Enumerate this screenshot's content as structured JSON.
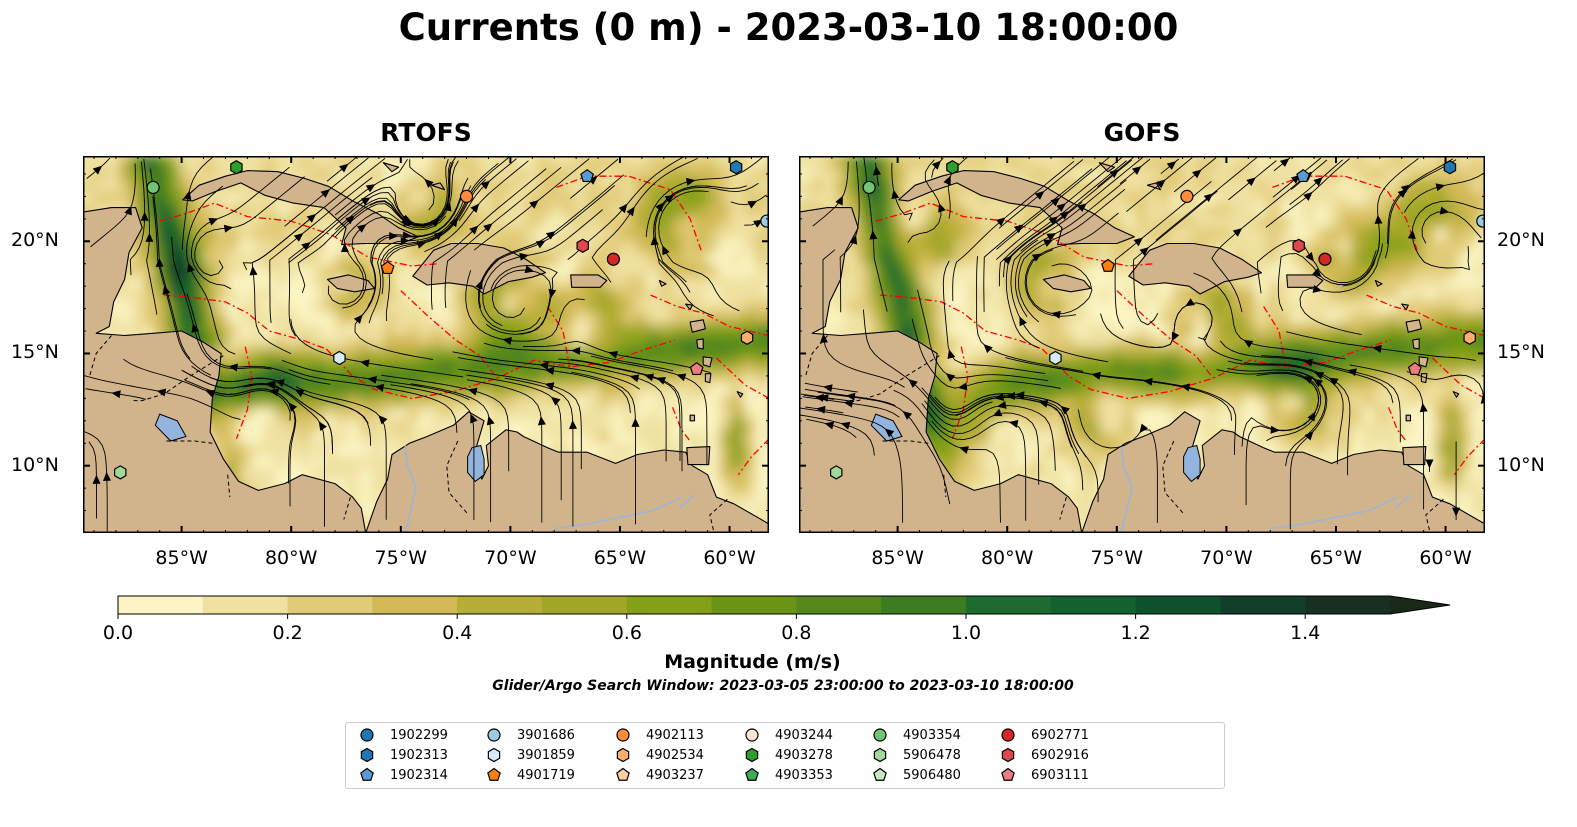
{
  "title": "Currents (0 m) - 2023-03-10 18:00:00",
  "panels": [
    {
      "title": "RTOFS"
    },
    {
      "title": "GOFS"
    }
  ],
  "lon_ticks": [
    "85°W",
    "80°W",
    "75°W",
    "70°W",
    "65°W",
    "60°W"
  ],
  "lat_ticks": [
    "20°N",
    "15°N",
    "10°N"
  ],
  "colorbar": {
    "label": "Magnitude (m/s)",
    "ticks": [
      "0.0",
      "0.2",
      "0.4",
      "0.6",
      "0.8",
      "1.0",
      "1.2",
      "1.4"
    ],
    "range": [
      0.0,
      1.5
    ],
    "extend": "max",
    "colors": [
      "#fbf5c3",
      "#efe1a0",
      "#e1cb77",
      "#d2b955",
      "#b6ae36",
      "#a0a626",
      "#84a016",
      "#6a9414",
      "#55891c",
      "#3e7c22",
      "#1f6b2f",
      "#13612e",
      "#0e522c",
      "#113f29",
      "#183022",
      "#1a2917"
    ]
  },
  "search_window": "Glider/Argo Search Window: 2023-03-05 23:00:00 to 2023-03-10 18:00:00",
  "colors": {
    "land": "#d2b48c",
    "lake": "#93b4dc",
    "eez": "#ff0000"
  },
  "legend": [
    {
      "id": "1902299",
      "marker": "circle",
      "color": "#1f77b4"
    },
    {
      "id": "1902313",
      "marker": "hexagon",
      "color": "#1f77b4"
    },
    {
      "id": "1902314",
      "marker": "pentagon",
      "color": "#5b9bd5"
    },
    {
      "id": "3901686",
      "marker": "circle",
      "color": "#9ecae1"
    },
    {
      "id": "3901859",
      "marker": "hexagon",
      "color": "#d6eaf8"
    },
    {
      "id": "4901719",
      "marker": "pentagon",
      "color": "#ff7f0e"
    },
    {
      "id": "4902113",
      "marker": "circle",
      "color": "#fd8d3c"
    },
    {
      "id": "4902534",
      "marker": "hexagon",
      "color": "#fdae6b"
    },
    {
      "id": "4903237",
      "marker": "pentagon",
      "color": "#fdd0a2"
    },
    {
      "id": "4903244",
      "marker": "circle",
      "color": "#fee6ce"
    },
    {
      "id": "4903278",
      "marker": "hexagon",
      "color": "#2ca02c"
    },
    {
      "id": "4903353",
      "marker": "pentagon",
      "color": "#41ab5d"
    },
    {
      "id": "4903354",
      "marker": "circle",
      "color": "#74c476"
    },
    {
      "id": "5906478",
      "marker": "hexagon",
      "color": "#a1d99b"
    },
    {
      "id": "5906480",
      "marker": "pentagon",
      "color": "#c7e9c0"
    },
    {
      "id": "6902771",
      "marker": "circle",
      "color": "#d62728"
    },
    {
      "id": "6902916",
      "marker": "hexagon",
      "color": "#e0474c"
    },
    {
      "id": "6903111",
      "marker": "pentagon",
      "color": "#f07b7f"
    }
  ],
  "map_extent": {
    "lon": [
      -89.5,
      -58.2
    ],
    "lat": [
      7.0,
      23.8
    ]
  },
  "floats_positions": {
    "RTOFS": [
      {
        "id": "4903354",
        "lon": -86.3,
        "lat": 22.4
      },
      {
        "id": "4903278",
        "lon": -82.5,
        "lat": 23.3
      },
      {
        "id": "4902113",
        "lon": -72.0,
        "lat": 22.0
      },
      {
        "id": "1902314",
        "lon": -66.5,
        "lat": 22.9
      },
      {
        "id": "1902313",
        "lon": -59.7,
        "lat": 23.3
      },
      {
        "id": "3901686",
        "lon": -58.3,
        "lat": 20.9
      },
      {
        "id": "4901719",
        "lon": -75.6,
        "lat": 18.8
      },
      {
        "id": "6902916",
        "lon": -66.7,
        "lat": 19.8
      },
      {
        "id": "6902771",
        "lon": -65.3,
        "lat": 19.2
      },
      {
        "id": "3901859",
        "lon": -77.8,
        "lat": 14.8
      },
      {
        "id": "4902534",
        "lon": -59.2,
        "lat": 15.7
      },
      {
        "id": "6903111",
        "lon": -61.5,
        "lat": 14.3
      },
      {
        "id": "5906478",
        "lon": -87.8,
        "lat": 9.7
      }
    ],
    "GOFS": [
      {
        "id": "4903354",
        "lon": -86.3,
        "lat": 22.4
      },
      {
        "id": "4903278",
        "lon": -82.5,
        "lat": 23.3
      },
      {
        "id": "4902113",
        "lon": -71.8,
        "lat": 22.0
      },
      {
        "id": "1902314",
        "lon": -66.5,
        "lat": 22.9
      },
      {
        "id": "1902313",
        "lon": -59.8,
        "lat": 23.3
      },
      {
        "id": "3901686",
        "lon": -58.3,
        "lat": 20.9
      },
      {
        "id": "4901719",
        "lon": -75.4,
        "lat": 18.9
      },
      {
        "id": "6902916",
        "lon": -66.7,
        "lat": 19.8
      },
      {
        "id": "6902771",
        "lon": -65.5,
        "lat": 19.2
      },
      {
        "id": "3901859",
        "lon": -77.8,
        "lat": 14.8
      },
      {
        "id": "4902534",
        "lon": -58.9,
        "lat": 15.7
      },
      {
        "id": "6903111",
        "lon": -61.4,
        "lat": 14.3
      },
      {
        "id": "5906478",
        "lon": -87.8,
        "lat": 9.7
      }
    ]
  }
}
